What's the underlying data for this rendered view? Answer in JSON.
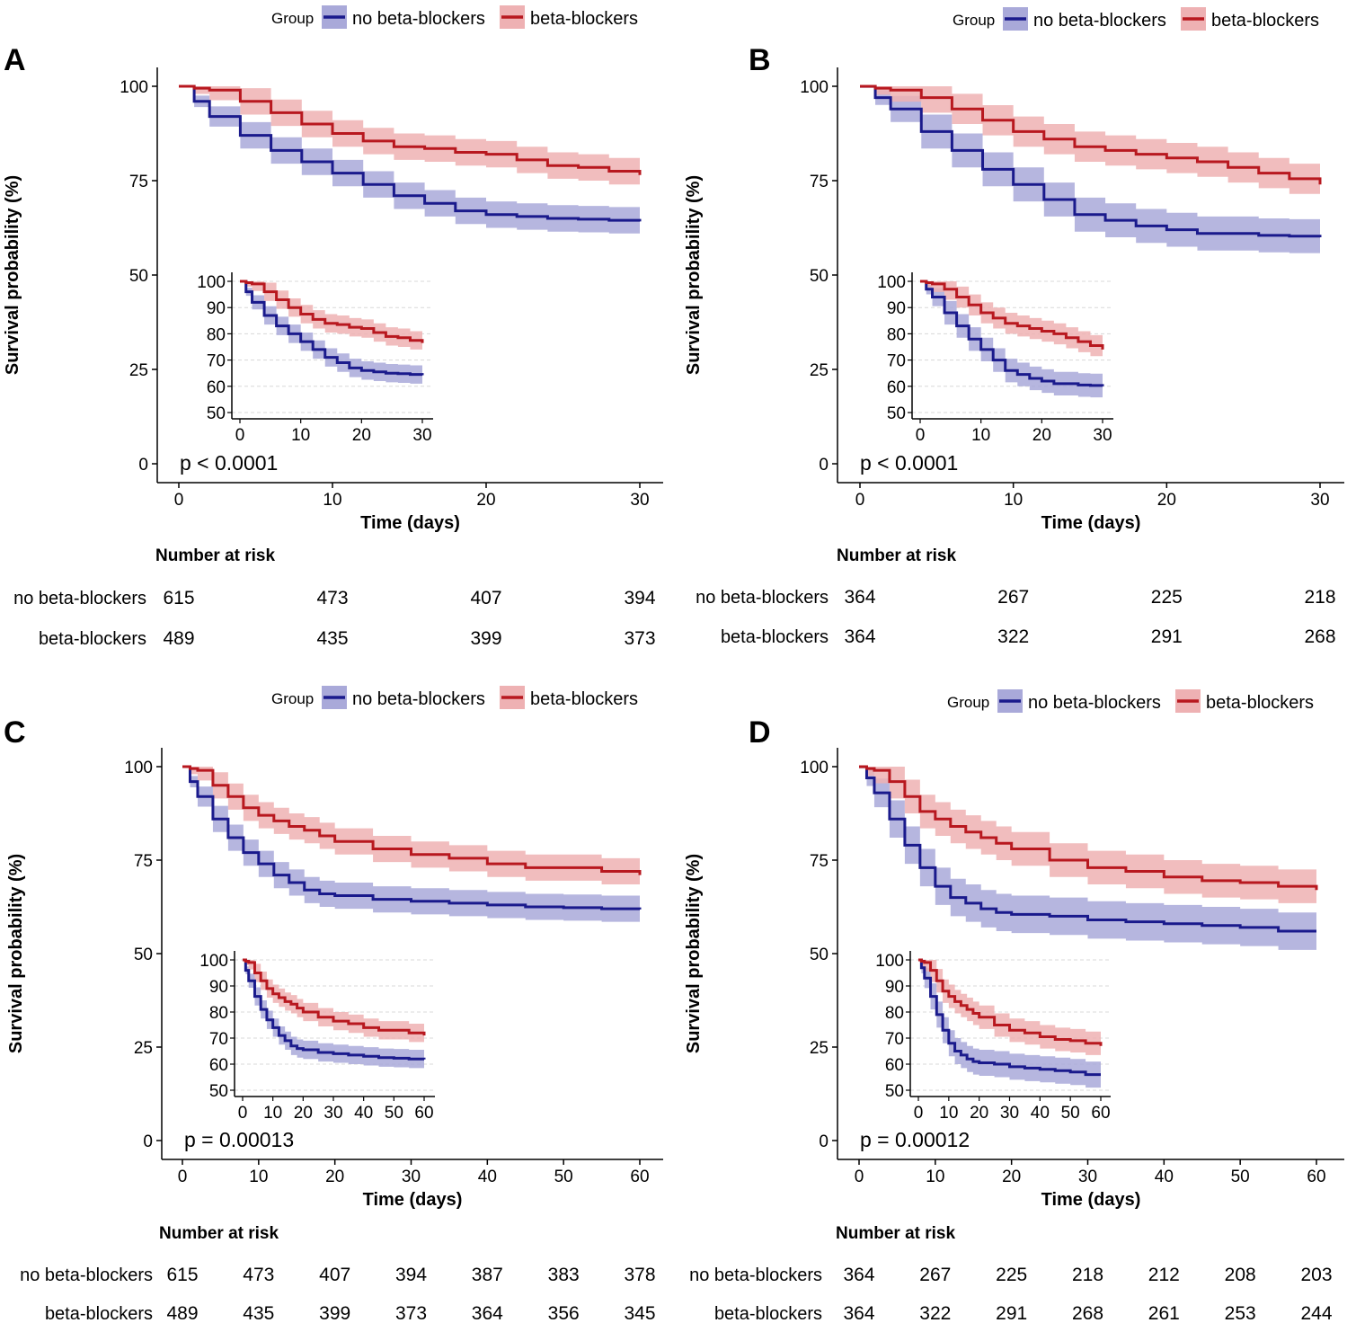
{
  "legend": {
    "title": "Group",
    "labels": [
      "no beta-blockers",
      "beta-blockers"
    ]
  },
  "colors": {
    "no_beta_line": "#1a1a8c",
    "no_beta_band": "#a9a9d9",
    "beta_line": "#b8181f",
    "beta_band": "#eeb1b3",
    "grid": "#d8d8d8",
    "axis": "#000000"
  },
  "risk_table_title": "Number at risk",
  "chart_data": [
    {
      "panel": "A",
      "type": "line",
      "title": "",
      "ylabel": "Survival probability (%)",
      "xlabel": "Time (days)",
      "xlim": [
        0,
        30
      ],
      "ylim": [
        0,
        100
      ],
      "x_ticks": [
        0,
        10,
        20,
        30
      ],
      "y_ticks": [
        0,
        25,
        50,
        75,
        100
      ],
      "pvalue": "p < 0.0001",
      "series": [
        {
          "name": "no beta-blockers",
          "x": [
            0,
            1,
            2,
            4,
            6,
            8,
            10,
            12,
            14,
            16,
            18,
            20,
            22,
            24,
            26,
            28,
            30
          ],
          "y": [
            100,
            96,
            92,
            87,
            83,
            80,
            77,
            74,
            71,
            69,
            67,
            66,
            65.5,
            65,
            64.8,
            64.5,
            64.2
          ],
          "band": 3.5
        },
        {
          "name": "beta-blockers",
          "x": [
            0,
            1,
            2,
            4,
            6,
            8,
            10,
            12,
            14,
            16,
            18,
            20,
            22,
            24,
            26,
            28,
            30
          ],
          "y": [
            100,
            99.5,
            99,
            96,
            93,
            90,
            87.5,
            85.5,
            84,
            83.5,
            82.5,
            82,
            80.5,
            79,
            78.5,
            77.5,
            76.5
          ],
          "band": 3.5
        }
      ],
      "inset": {
        "xlim": [
          0,
          30
        ],
        "x_ticks": [
          0,
          10,
          20,
          30
        ],
        "ylim": [
          50,
          100
        ],
        "y_ticks": [
          50,
          60,
          70,
          80,
          90,
          100
        ]
      },
      "risk_times": [
        0,
        10,
        20,
        30
      ],
      "risk": {
        "no beta-blockers": [
          615,
          473,
          407,
          394
        ],
        "beta-blockers": [
          489,
          435,
          399,
          373
        ]
      }
    },
    {
      "panel": "B",
      "type": "line",
      "title": "",
      "ylabel": "Survival probability (%)",
      "xlabel": "Time (days)",
      "xlim": [
        0,
        30
      ],
      "ylim": [
        0,
        100
      ],
      "x_ticks": [
        0,
        10,
        20,
        30
      ],
      "y_ticks": [
        0,
        25,
        50,
        75,
        100
      ],
      "pvalue": "p < 0.0001",
      "series": [
        {
          "name": "no beta-blockers",
          "x": [
            0,
            1,
            2,
            4,
            6,
            8,
            10,
            12,
            14,
            16,
            18,
            20,
            22,
            24,
            26,
            28,
            30
          ],
          "y": [
            100,
            97,
            94,
            88,
            83,
            78,
            74,
            70,
            66,
            64.5,
            63,
            62,
            61,
            61,
            60.5,
            60.3,
            60
          ],
          "band": 4.5
        },
        {
          "name": "beta-blockers",
          "x": [
            0,
            1,
            2,
            4,
            6,
            8,
            10,
            12,
            14,
            16,
            18,
            20,
            22,
            24,
            26,
            28,
            30
          ],
          "y": [
            100,
            99.5,
            99,
            97,
            94,
            91,
            88,
            86,
            84,
            83,
            82,
            81,
            80,
            78.5,
            77,
            75.5,
            74
          ],
          "band": 4
        }
      ],
      "inset": {
        "xlim": [
          0,
          30
        ],
        "x_ticks": [
          0,
          10,
          20,
          30
        ],
        "ylim": [
          50,
          100
        ],
        "y_ticks": [
          50,
          60,
          70,
          80,
          90,
          100
        ]
      },
      "risk_times": [
        0,
        10,
        20,
        30
      ],
      "risk": {
        "no beta-blockers": [
          364,
          267,
          225,
          218
        ],
        "beta-blockers": [
          364,
          322,
          291,
          268
        ]
      }
    },
    {
      "panel": "C",
      "type": "line",
      "title": "",
      "ylabel": "Survival probability (%)",
      "xlabel": "Time (days)",
      "xlim": [
        0,
        60
      ],
      "ylim": [
        0,
        100
      ],
      "x_ticks": [
        0,
        10,
        20,
        30,
        40,
        50,
        60
      ],
      "y_ticks": [
        0,
        25,
        50,
        75,
        100
      ],
      "pvalue": "p = 0.00013",
      "series": [
        {
          "name": "no beta-blockers",
          "x": [
            0,
            1,
            2,
            4,
            6,
            8,
            10,
            12,
            14,
            16,
            18,
            20,
            25,
            30,
            35,
            40,
            45,
            50,
            55,
            60
          ],
          "y": [
            100,
            96,
            92,
            86,
            81,
            77,
            74,
            71,
            69,
            67,
            66,
            65.5,
            64.5,
            64,
            63.5,
            63,
            62.5,
            62.3,
            62,
            61.8
          ],
          "band": 3.5
        },
        {
          "name": "beta-blockers",
          "x": [
            0,
            1,
            2,
            4,
            6,
            8,
            10,
            12,
            14,
            16,
            18,
            20,
            25,
            30,
            35,
            40,
            45,
            50,
            55,
            60
          ],
          "y": [
            100,
            99.5,
            99,
            95,
            92,
            89,
            87,
            85.5,
            84,
            83,
            81.5,
            80,
            78,
            76.5,
            75.5,
            74,
            73,
            73,
            72,
            71
          ],
          "band": 3.5
        }
      ],
      "inset": {
        "xlim": [
          0,
          60
        ],
        "x_ticks": [
          0,
          10,
          20,
          30,
          40,
          50,
          60
        ],
        "ylim": [
          50,
          100
        ],
        "y_ticks": [
          50,
          60,
          70,
          80,
          90,
          100
        ]
      },
      "risk_times": [
        0,
        10,
        20,
        30,
        40,
        50,
        60
      ],
      "risk": {
        "no beta-blockers": [
          615,
          473,
          407,
          394,
          387,
          383,
          378
        ],
        "beta-blockers": [
          489,
          435,
          399,
          373,
          364,
          356,
          345
        ]
      }
    },
    {
      "panel": "D",
      "type": "line",
      "title": "",
      "ylabel": "Survival probability (%)",
      "xlabel": "Time (days)",
      "xlim": [
        0,
        60
      ],
      "ylim": [
        0,
        100
      ],
      "x_ticks": [
        0,
        10,
        20,
        30,
        40,
        50,
        60
      ],
      "y_ticks": [
        0,
        25,
        50,
        75,
        100
      ],
      "pvalue": "p = 0.00012",
      "series": [
        {
          "name": "no beta-blockers",
          "x": [
            0,
            1,
            2,
            4,
            6,
            8,
            10,
            12,
            14,
            16,
            18,
            20,
            25,
            30,
            35,
            40,
            45,
            50,
            55,
            60
          ],
          "y": [
            100,
            97,
            93,
            86,
            79,
            73,
            68,
            65,
            63.5,
            62,
            61,
            60.5,
            60,
            59,
            58.5,
            58,
            57.5,
            57,
            56,
            56
          ],
          "band": 5
        },
        {
          "name": "beta-blockers",
          "x": [
            0,
            1,
            2,
            4,
            6,
            8,
            10,
            12,
            14,
            16,
            18,
            20,
            25,
            30,
            35,
            40,
            45,
            50,
            55,
            60
          ],
          "y": [
            100,
            99.5,
            99,
            96,
            92,
            88,
            86,
            84,
            82.5,
            81,
            79.5,
            78,
            75,
            73,
            72,
            70.5,
            69.5,
            69,
            68,
            67
          ],
          "band": 4.5
        }
      ],
      "inset": {
        "xlim": [
          0,
          60
        ],
        "x_ticks": [
          0,
          10,
          20,
          30,
          40,
          50,
          60
        ],
        "ylim": [
          50,
          100
        ],
        "y_ticks": [
          50,
          60,
          70,
          80,
          90,
          100
        ]
      },
      "risk_times": [
        0,
        10,
        20,
        30,
        40,
        50,
        60
      ],
      "risk": {
        "no beta-blockers": [
          364,
          267,
          225,
          218,
          212,
          208,
          203
        ],
        "beta-blockers": [
          364,
          322,
          291,
          268,
          261,
          253,
          244
        ]
      }
    }
  ]
}
